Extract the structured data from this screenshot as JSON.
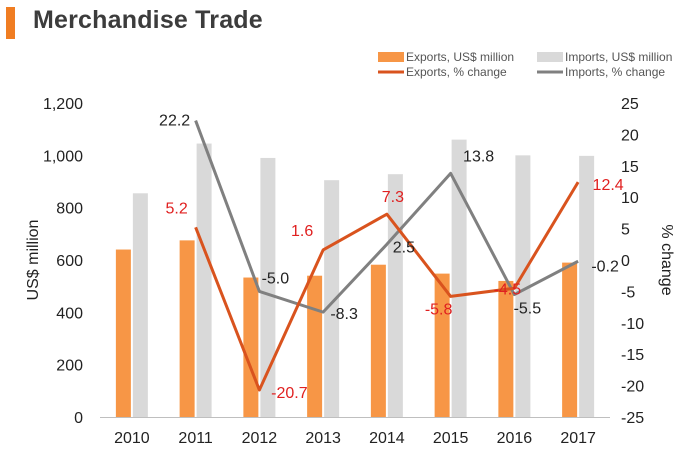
{
  "header": {
    "title": "Merchandise Trade",
    "accent_color": "#f07d22"
  },
  "colors": {
    "exports_bar": "#f79646",
    "imports_bar": "#d9d9d9",
    "exports_line": "#d9531e",
    "imports_line": "#808080",
    "exports_label": "#e02020",
    "imports_label": "#222222"
  },
  "chart_data": {
    "type": "bar",
    "categories": [
      "2010",
      "2011",
      "2012",
      "2013",
      "2014",
      "2015",
      "2016",
      "2017"
    ],
    "series": [
      {
        "name": "Exports, US$ million",
        "type": "bar",
        "axis": "left",
        "values": [
          640,
          675,
          533,
          540,
          582,
          548,
          520,
          590
        ]
      },
      {
        "name": "Imports, US$ million",
        "type": "bar",
        "axis": "left",
        "values": [
          855,
          1045,
          990,
          905,
          928,
          1060,
          1000,
          998
        ]
      },
      {
        "name": "Exports, % change",
        "type": "line",
        "axis": "right",
        "values": [
          null,
          5.2,
          -20.7,
          1.6,
          7.3,
          -5.8,
          -4.5,
          12.4
        ]
      },
      {
        "name": "Imports, % change",
        "type": "line",
        "axis": "right",
        "values": [
          null,
          22.2,
          -5.0,
          -8.3,
          2.5,
          13.8,
          -5.5,
          -0.2
        ]
      }
    ],
    "exports_labels": [
      "",
      "5.2",
      "-20.7",
      "1.6",
      "7.3",
      "-5.8",
      "-4.5",
      "12.4"
    ],
    "imports_labels": [
      "",
      "22.2",
      "-5.0",
      "-8.3",
      "2.5",
      "13.8",
      "-5.5",
      "-0.2"
    ],
    "ylabel": "US$ million",
    "y2label": "% change",
    "ylim": [
      0,
      1200
    ],
    "y2lim": [
      -25,
      25
    ],
    "yticks": [
      "0",
      "200",
      "400",
      "600",
      "800",
      "1,000",
      "1,200"
    ],
    "y2ticks": [
      "-25",
      "-20",
      "-15",
      "-10",
      "-5",
      "0",
      "5",
      "10",
      "15",
      "20",
      "25"
    ],
    "grid": false,
    "legend_position": "top-right"
  }
}
